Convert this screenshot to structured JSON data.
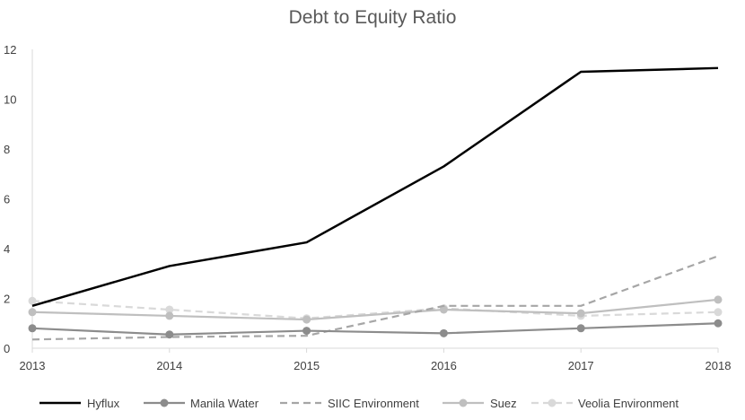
{
  "chart_data": {
    "type": "line",
    "title": "Debt to Equity Ratio",
    "xlabel": "",
    "ylabel": "",
    "categories": [
      "2013",
      "2014",
      "2015",
      "2016",
      "2017",
      "2018"
    ],
    "y_ticks": [
      "0",
      "2",
      "4",
      "6",
      "8",
      "10",
      "12"
    ],
    "ylim": [
      0,
      12
    ],
    "grid": false,
    "legend_position": "bottom",
    "series": [
      {
        "name": "Hyflux",
        "values": [
          1.7,
          3.3,
          4.25,
          7.3,
          11.1,
          11.25
        ],
        "color": "#000000",
        "style": "solid",
        "marker": false
      },
      {
        "name": "Manila Water",
        "values": [
          0.8,
          0.55,
          0.7,
          0.6,
          0.8,
          1.0
        ],
        "color": "#8c8c8c",
        "style": "solid",
        "marker": true
      },
      {
        "name": "SIIC Environment",
        "values": [
          0.35,
          0.45,
          0.5,
          1.7,
          1.7,
          3.7
        ],
        "color": "#a6a6a6",
        "style": "dashed",
        "marker": false
      },
      {
        "name": "Suez",
        "values": [
          1.45,
          1.3,
          1.15,
          1.55,
          1.4,
          1.95
        ],
        "color": "#bfbfbf",
        "style": "solid",
        "marker": true
      },
      {
        "name": "Veolia Environment",
        "values": [
          1.9,
          1.55,
          1.2,
          1.6,
          1.3,
          1.45
        ],
        "color": "#d9d9d9",
        "style": "dashed",
        "marker": true
      }
    ]
  }
}
